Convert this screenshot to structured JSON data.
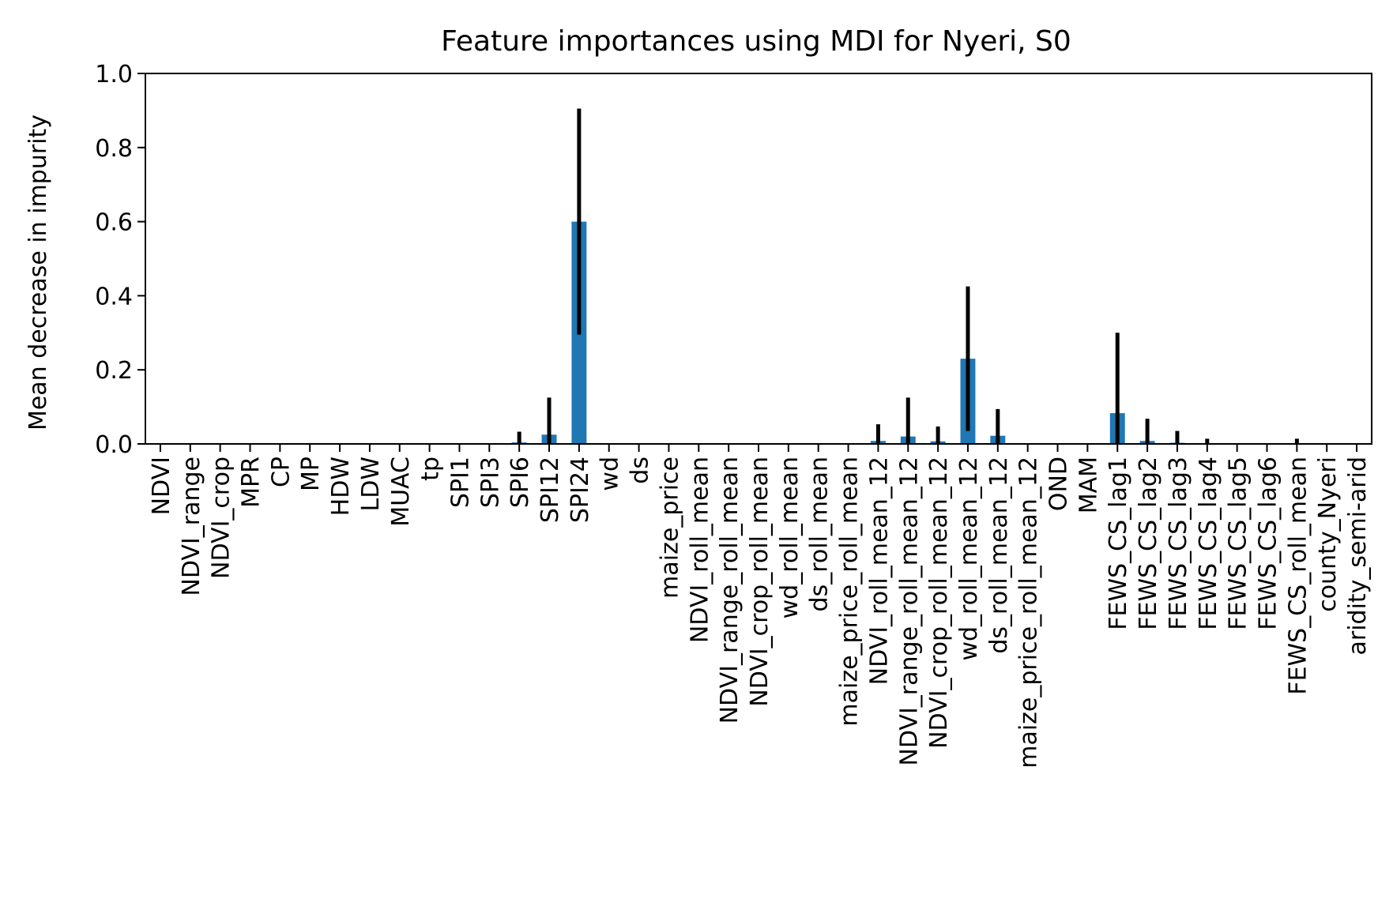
{
  "chart_data": {
    "type": "bar",
    "title": "Feature importances using MDI for Nyeri, S0",
    "xlabel": "",
    "ylabel": "Mean decrease in impurity",
    "ylim": [
      0,
      1.0
    ],
    "yticks": [
      "0.0",
      "0.2",
      "0.4",
      "0.6",
      "0.8",
      "1.0"
    ],
    "grid": false,
    "bar_color": "#1f77b4",
    "error_color": "#000000",
    "categories": [
      "NDVI",
      "NDVI_range",
      "NDVI_crop",
      "MPR",
      "CP",
      "MP",
      "HDW",
      "LDW",
      "MUAC",
      "tp",
      "SPI1",
      "SPI3",
      "SPI6",
      "SPI12",
      "SPI24",
      "wd",
      "ds",
      "maize_price",
      "NDVI_roll_mean",
      "NDVI_range_roll_mean",
      "NDVI_crop_roll_mean",
      "wd_roll_mean",
      "ds_roll_mean",
      "maize_price_roll_mean",
      "NDVI_roll_mean_12",
      "NDVI_range_roll_mean_12",
      "NDVI_crop_roll_mean_12",
      "wd_roll_mean_12",
      "ds_roll_mean_12",
      "maize_price_roll_mean_12",
      "OND",
      "MAM",
      "FEWS_CS_lag1",
      "FEWS_CS_lag2",
      "FEWS_CS_lag3",
      "FEWS_CS_lag4",
      "FEWS_CS_lag5",
      "FEWS_CS_lag6",
      "FEWS_CS_roll_mean",
      "county_Nyeri",
      "aridity_semi-arid"
    ],
    "values": [
      0,
      0,
      0,
      0,
      0,
      0,
      0,
      0,
      0,
      0,
      0,
      0,
      0.004,
      0.025,
      0.6,
      0,
      0,
      0,
      0,
      0,
      0,
      0,
      0,
      0,
      0.008,
      0.02,
      0.007,
      0.23,
      0.022,
      0,
      0,
      0,
      0.083,
      0.008,
      0.003,
      0.001,
      0,
      0,
      0.001,
      0,
      0
    ],
    "errors": [
      0,
      0,
      0,
      0,
      0,
      0,
      0,
      0,
      0,
      0,
      0,
      0,
      0.029,
      0.1,
      0.305,
      0,
      0,
      0,
      0,
      0,
      0,
      0,
      0,
      0,
      0.045,
      0.105,
      0.04,
      0.195,
      0.072,
      0,
      0,
      0,
      0.217,
      0.06,
      0.032,
      0.013,
      0,
      0,
      0.013,
      0,
      0
    ]
  }
}
